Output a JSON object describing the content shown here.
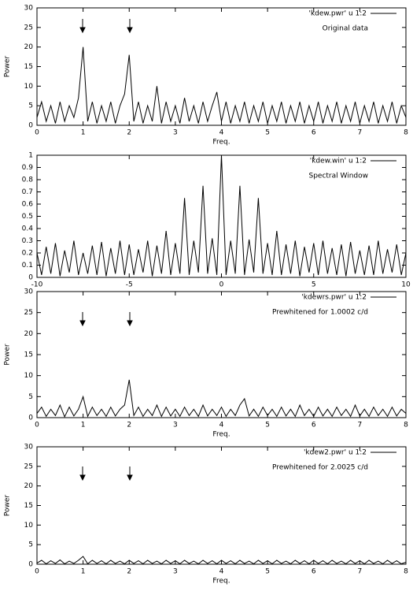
{
  "chart_data": [
    {
      "type": "line",
      "xlabel": "Freq.",
      "ylabel": "Power",
      "annotation": "Original data",
      "x": [
        0,
        0.1,
        0.2,
        0.3,
        0.4,
        0.5,
        0.6,
        0.7,
        0.8,
        0.9,
        1,
        1.1,
        1.2,
        1.3,
        1.4,
        1.5,
        1.6,
        1.7,
        1.8,
        1.9,
        2,
        2.1,
        2.2,
        2.3,
        2.4,
        2.5,
        2.6,
        2.7,
        2.8,
        2.9,
        3,
        3.1,
        3.2,
        3.3,
        3.4,
        3.5,
        3.6,
        3.7,
        3.8,
        3.9,
        4,
        4.1,
        4.2,
        4.3,
        4.4,
        4.5,
        4.6,
        4.7,
        4.8,
        4.9,
        5,
        5.1,
        5.2,
        5.3,
        5.4,
        5.5,
        5.6,
        5.7,
        5.8,
        5.9,
        6,
        6.1,
        6.2,
        6.3,
        6.4,
        6.5,
        6.6,
        6.7,
        6.8,
        6.9,
        7,
        7.1,
        7.2,
        7.3,
        7.4,
        7.5,
        7.6,
        7.7,
        7.8,
        7.9,
        8
      ],
      "series": [
        {
          "name": "'kdew.pwr' u 1:2",
          "color": "#000000",
          "values": [
            2,
            6,
            1,
            5,
            0.5,
            6,
            1,
            5,
            2,
            7,
            20,
            1,
            6,
            0.5,
            5,
            1,
            6,
            0.5,
            5,
            8,
            18,
            1,
            6,
            0.5,
            5,
            1,
            10,
            0.5,
            6,
            1,
            5,
            0.5,
            7,
            1,
            5,
            0.5,
            6,
            1,
            5,
            8.5,
            1,
            6,
            0.5,
            5,
            1,
            6,
            0.5,
            5,
            1,
            6,
            0.5,
            5,
            1,
            6,
            0.5,
            5,
            1,
            6,
            0.5,
            5,
            1,
            6,
            0.5,
            5,
            1,
            6,
            0.5,
            5,
            1,
            6,
            0.5,
            5,
            1,
            6,
            0.5,
            5,
            1,
            6,
            0.5,
            5,
            2
          ]
        }
      ],
      "xlim": [
        0,
        8
      ],
      "ylim": [
        0,
        30
      ],
      "xticks": [
        0,
        1,
        2,
        3,
        4,
        5,
        6,
        7,
        8
      ],
      "yticks": [
        0,
        5,
        10,
        15,
        20,
        25,
        30
      ]
    },
    {
      "type": "line",
      "annotation": "Spectral Window",
      "x": [
        -10,
        -9.75,
        -9.5,
        -9.25,
        -9,
        -8.75,
        -8.5,
        -8.25,
        -8,
        -7.75,
        -7.5,
        -7.25,
        -7,
        -6.75,
        -6.5,
        -6.25,
        -6,
        -5.75,
        -5.5,
        -5.25,
        -5,
        -4.75,
        -4.5,
        -4.25,
        -4,
        -3.75,
        -3.5,
        -3.25,
        -3,
        -2.75,
        -2.5,
        -2.25,
        -2,
        -1.75,
        -1.5,
        -1.25,
        -1,
        -0.75,
        -0.5,
        -0.25,
        0,
        0.25,
        0.5,
        0.75,
        1,
        1.25,
        1.5,
        1.75,
        2,
        2.25,
        2.5,
        2.75,
        3,
        3.25,
        3.5,
        3.75,
        4,
        4.25,
        4.5,
        4.75,
        5,
        5.25,
        5.5,
        5.75,
        6,
        6.25,
        6.5,
        6.75,
        7,
        7.25,
        7.5,
        7.75,
        8,
        8.25,
        8.5,
        8.75,
        9,
        9.25,
        9.5,
        9.75,
        10
      ],
      "series": [
        {
          "name": "'kdew.win' u 1:2",
          "color": "#000000",
          "values": [
            0.2,
            0.02,
            0.25,
            0.03,
            0.28,
            0.01,
            0.22,
            0.04,
            0.3,
            0.02,
            0.2,
            0.03,
            0.26,
            0.02,
            0.29,
            0.01,
            0.24,
            0.03,
            0.3,
            0.02,
            0.27,
            0.02,
            0.23,
            0.04,
            0.3,
            0.01,
            0.26,
            0.03,
            0.38,
            0.02,
            0.28,
            0.03,
            0.65,
            0.02,
            0.3,
            0.04,
            0.75,
            0.03,
            0.32,
            0.02,
            1,
            0.02,
            0.3,
            0.03,
            0.75,
            0.02,
            0.31,
            0.04,
            0.65,
            0.03,
            0.28,
            0.02,
            0.38,
            0.02,
            0.27,
            0.03,
            0.3,
            0.01,
            0.25,
            0.04,
            0.28,
            0.02,
            0.3,
            0.03,
            0.24,
            0.02,
            0.27,
            0.01,
            0.29,
            0.03,
            0.22,
            0.02,
            0.26,
            0.02,
            0.3,
            0.03,
            0.23,
            0.04,
            0.27,
            0.02,
            0.2
          ]
        }
      ],
      "xlim": [
        -10,
        10
      ],
      "ylim": [
        0,
        1
      ],
      "xticks": [
        -10,
        -5,
        0,
        5,
        10
      ],
      "yticks": [
        0,
        0.1,
        0.2,
        0.3,
        0.4,
        0.5,
        0.6,
        0.7,
        0.8,
        0.9,
        1
      ]
    },
    {
      "type": "line",
      "xlabel": "Freq.",
      "ylabel": "Power",
      "annotation": "Prewhitened for 1.0002 c/d",
      "x": [
        0,
        0.1,
        0.2,
        0.3,
        0.4,
        0.5,
        0.6,
        0.7,
        0.8,
        0.9,
        1,
        1.1,
        1.2,
        1.3,
        1.4,
        1.5,
        1.6,
        1.7,
        1.8,
        1.9,
        2,
        2.1,
        2.2,
        2.3,
        2.4,
        2.5,
        2.6,
        2.7,
        2.8,
        2.9,
        3,
        3.1,
        3.2,
        3.3,
        3.4,
        3.5,
        3.6,
        3.7,
        3.8,
        3.9,
        4,
        4.1,
        4.2,
        4.3,
        4.4,
        4.5,
        4.6,
        4.7,
        4.8,
        4.9,
        5,
        5.1,
        5.2,
        5.3,
        5.4,
        5.5,
        5.6,
        5.7,
        5.8,
        5.9,
        6,
        6.1,
        6.2,
        6.3,
        6.4,
        6.5,
        6.6,
        6.7,
        6.8,
        6.9,
        7,
        7.1,
        7.2,
        7.3,
        7.4,
        7.5,
        7.6,
        7.7,
        7.8,
        7.9,
        8
      ],
      "series": [
        {
          "name": "'kdewrs.pwr' u 1:2",
          "color": "#000000",
          "values": [
            1,
            2.5,
            0.3,
            2,
            0.5,
            3,
            0.2,
            2.5,
            0.4,
            2,
            5,
            0.3,
            2.5,
            0.5,
            2,
            0.3,
            2.5,
            0.4,
            2,
            3,
            9,
            0.5,
            2.5,
            0.3,
            2,
            0.5,
            3,
            0.3,
            2.5,
            0.4,
            2,
            0.3,
            2.5,
            0.5,
            2,
            0.3,
            3,
            0.4,
            2,
            0.5,
            2.5,
            0.3,
            2,
            0.5,
            3,
            4.5,
            0.4,
            2,
            0.3,
            2.5,
            0.5,
            2,
            0.3,
            2.5,
            0.4,
            2,
            0.3,
            3,
            0.5,
            2,
            0.3,
            2.5,
            0.4,
            2,
            0.3,
            2.5,
            0.5,
            2,
            0.3,
            3,
            0.4,
            2,
            0.3,
            2.5,
            0.5,
            2,
            0.3,
            2.5,
            0.4,
            2,
            1
          ]
        }
      ],
      "xlim": [
        0,
        8
      ],
      "ylim": [
        0,
        30
      ],
      "xticks": [
        0,
        1,
        2,
        3,
        4,
        5,
        6,
        7,
        8
      ],
      "yticks": [
        0,
        5,
        10,
        15,
        20,
        25,
        30
      ]
    },
    {
      "type": "line",
      "xlabel": "Freq.",
      "ylabel": "Power",
      "annotation": "Prewhitened for 2.0025 c/d",
      "x": [
        0,
        0.1,
        0.2,
        0.3,
        0.4,
        0.5,
        0.6,
        0.7,
        0.8,
        0.9,
        1,
        1.1,
        1.2,
        1.3,
        1.4,
        1.5,
        1.6,
        1.7,
        1.8,
        1.9,
        2,
        2.1,
        2.2,
        2.3,
        2.4,
        2.5,
        2.6,
        2.7,
        2.8,
        2.9,
        3,
        3.1,
        3.2,
        3.3,
        3.4,
        3.5,
        3.6,
        3.7,
        3.8,
        3.9,
        4,
        4.1,
        4.2,
        4.3,
        4.4,
        4.5,
        4.6,
        4.7,
        4.8,
        4.9,
        5,
        5.1,
        5.2,
        5.3,
        5.4,
        5.5,
        5.6,
        5.7,
        5.8,
        5.9,
        6,
        6.1,
        6.2,
        6.3,
        6.4,
        6.5,
        6.6,
        6.7,
        6.8,
        6.9,
        7,
        7.1,
        7.2,
        7.3,
        7.4,
        7.5,
        7.6,
        7.7,
        7.8,
        7.9,
        8
      ],
      "series": [
        {
          "name": "'kdew2.pwr' u 1:2",
          "color": "#000000",
          "values": [
            0.3,
            1,
            0.1,
            0.9,
            0.2,
            1.1,
            0.1,
            0.8,
            0.2,
            1,
            2,
            0.1,
            1,
            0.2,
            0.9,
            0.1,
            1,
            0.2,
            0.8,
            0.1,
            1,
            0.2,
            0.9,
            0.1,
            1,
            0.2,
            0.8,
            0.1,
            1,
            0.2,
            0.9,
            0.1,
            1,
            0.2,
            0.8,
            0.1,
            1,
            0.2,
            0.9,
            0.1,
            1,
            0.2,
            0.9,
            0.1,
            1,
            0.2,
            0.8,
            0.1,
            1,
            0.2,
            0.9,
            0.1,
            1,
            0.2,
            0.8,
            0.1,
            1,
            0.2,
            0.9,
            0.1,
            1,
            0.2,
            0.9,
            0.1,
            1,
            0.2,
            0.8,
            0.1,
            1,
            0.2,
            0.9,
            0.1,
            1,
            0.2,
            0.8,
            0.1,
            1,
            0.2,
            0.9,
            0.1,
            0.5
          ]
        }
      ],
      "xlim": [
        0,
        8
      ],
      "ylim": [
        0,
        30
      ],
      "xticks": [
        0,
        1,
        2,
        3,
        4,
        5,
        6,
        7,
        8
      ],
      "yticks": [
        0,
        5,
        10,
        15,
        20,
        25,
        30
      ]
    }
  ]
}
